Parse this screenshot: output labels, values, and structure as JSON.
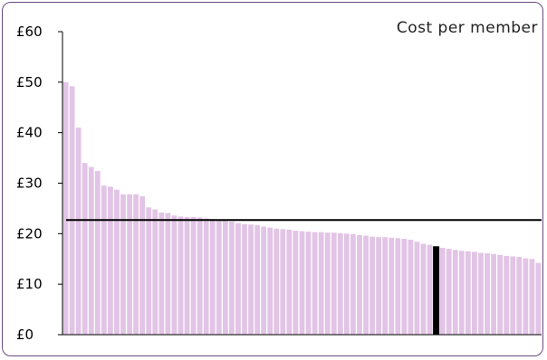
{
  "chart_data": {
    "type": "bar",
    "title": "Cost per member",
    "xlabel": "",
    "ylabel": "",
    "ylim": [
      0,
      60
    ],
    "ytick_values": [
      0,
      10,
      20,
      30,
      40,
      50,
      60
    ],
    "ytick_labels": [
      "£0",
      "£10",
      "£20",
      "£30",
      "£40",
      "£50",
      "£60"
    ],
    "series": [
      {
        "values": [
          50.0,
          49.2,
          41.0,
          34.0,
          33.2,
          32.4,
          29.5,
          29.3,
          28.7,
          27.8,
          27.8,
          27.8,
          27.4,
          25.2,
          24.8,
          24.2,
          24.1,
          23.6,
          23.4,
          23.3,
          23.3,
          23.2,
          23.0,
          22.9,
          22.8,
          22.6,
          22.4,
          22.1,
          21.9,
          21.8,
          21.7,
          21.4,
          21.2,
          21.0,
          20.9,
          20.8,
          20.6,
          20.5,
          20.4,
          20.3,
          20.3,
          20.2,
          20.2,
          20.1,
          20.0,
          19.9,
          19.7,
          19.6,
          19.4,
          19.3,
          19.3,
          19.2,
          19.1,
          19.0,
          18.8,
          18.4,
          18.0,
          17.8,
          17.5,
          17.2,
          17.0,
          16.8,
          16.6,
          16.5,
          16.4,
          16.2,
          16.1,
          16.0,
          15.8,
          15.6,
          15.5,
          15.4,
          15.1,
          15.0,
          14.2
        ]
      }
    ],
    "highlight_index": 58,
    "reference_line": 22.7,
    "colors": {
      "bars": "#e2c4e6",
      "highlight": "#000000",
      "reference_line": "#000000"
    }
  }
}
